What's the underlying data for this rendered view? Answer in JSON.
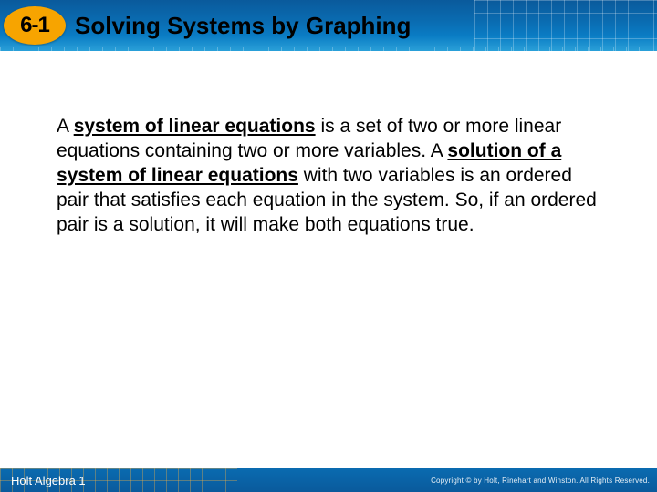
{
  "header": {
    "section_number": "6-1",
    "title": "Solving Systems by Graphing",
    "badge_bg": "#f7a400",
    "gradient_top": "#0a5a9c",
    "gradient_bottom": "#2aa0d8"
  },
  "body": {
    "pre1": "A ",
    "term1": "system of linear equations",
    "mid1": " is a set of two or more linear equations containing two or more variables. A ",
    "term2": "solution of a system of linear equations",
    "post1": " with two variables is an ordered pair that satisfies each equation in the system. So, if an ordered pair is a solution, it will make both equations true.",
    "font_size": 21,
    "text_color": "#000000"
  },
  "footer": {
    "book": "Holt Algebra 1",
    "copyright": "Copyright © by Holt, Rinehart and Winston. All Rights Reserved.",
    "bg_color": "#0a5a9c"
  }
}
